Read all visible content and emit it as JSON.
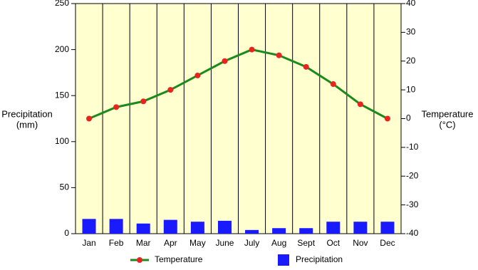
{
  "chart_data": {
    "type": "bar",
    "y_label": [
      "Precipitation",
      "(mm)"
    ],
    "y2_label": [
      "Temperature",
      "(°C)"
    ],
    "categories": [
      "Jan",
      "Feb",
      "Mar",
      "Apr",
      "May",
      "June",
      "July",
      "Aug",
      "Sept",
      "Oct",
      "Nov",
      "Dec"
    ],
    "series": [
      {
        "name": "Temperature",
        "type": "line",
        "axis": "y2",
        "color": "#1a8a1a",
        "marker_color": "#e8241e",
        "values": [
          0,
          4,
          6,
          10,
          15,
          20,
          24,
          22,
          18,
          12,
          5,
          0
        ]
      },
      {
        "name": "Precipitation",
        "type": "bar",
        "color": "#1a1aff",
        "values": [
          16,
          16,
          11,
          15,
          13,
          14,
          4,
          6,
          6,
          13,
          13,
          13
        ]
      }
    ],
    "ylim": [
      0,
      250
    ],
    "yticks": [
      0,
      50,
      100,
      150,
      200,
      250
    ],
    "y2lim": [
      -40,
      40
    ],
    "y2ticks": [
      -40,
      -30,
      -20,
      -10,
      0,
      10,
      20,
      30,
      40
    ],
    "background": "#ffffd0"
  }
}
